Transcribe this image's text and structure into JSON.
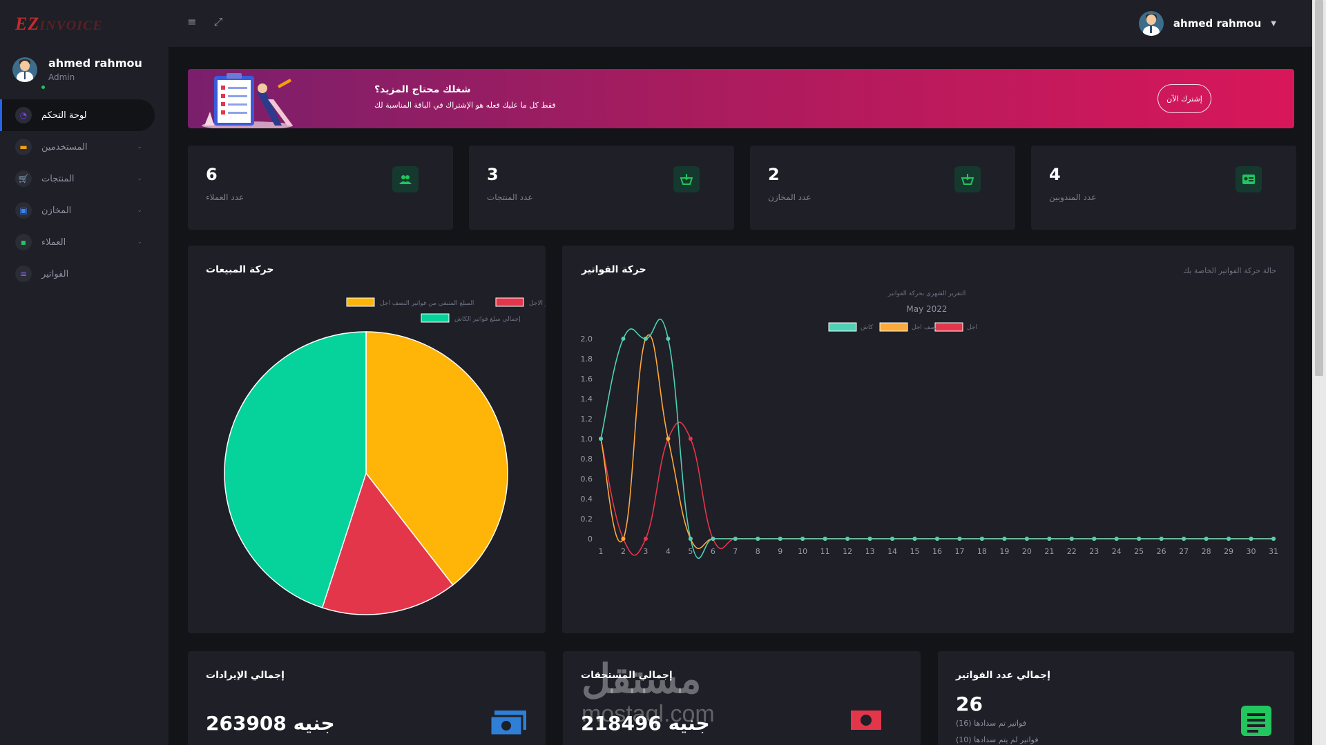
{
  "app": {
    "logo_prefix": "EZ",
    "logo_rest": "INVOICE"
  },
  "topbar": {
    "menu_icon": "menu-icon",
    "expand_icon": "expand-icon",
    "user_name": "ahmed rahmou"
  },
  "sidebar": {
    "user_name": "ahmed rahmou",
    "user_role": "Admin",
    "items": [
      {
        "label": "لوحة التحكم",
        "icon": "dashboard-icon",
        "color": "#7c3aed",
        "active": true,
        "has_children": false
      },
      {
        "label": "المستخدمين",
        "icon": "id-card-icon",
        "color": "#f59e0b",
        "active": false,
        "has_children": true
      },
      {
        "label": "المنتجات",
        "icon": "cart-icon",
        "color": "#ef4444",
        "active": false,
        "has_children": true
      },
      {
        "label": "المخازن",
        "icon": "warehouse-icon",
        "color": "#3b82f6",
        "active": false,
        "has_children": true
      },
      {
        "label": "العملاء",
        "icon": "contact-icon",
        "color": "#22c55e",
        "active": false,
        "has_children": true
      },
      {
        "label": "الفواتير",
        "icon": "invoice-icon",
        "color": "#8b5cf6",
        "active": false,
        "has_children": false
      }
    ]
  },
  "banner": {
    "title": "شغلك محتاج المزيد؟",
    "subtitle": "فقط كل ما عليك فعله هو الإشتراك في الباقة المناسبة لك",
    "button": "إشترك الآن"
  },
  "stats": [
    {
      "value": "6",
      "label": "عدد العملاء",
      "icon": "users-icon"
    },
    {
      "value": "3",
      "label": "عدد المنتجات",
      "icon": "basket-icon"
    },
    {
      "value": "2",
      "label": "عدد المخازن",
      "icon": "basket-icon"
    },
    {
      "value": "4",
      "label": "عدد المندوبين",
      "icon": "id-card-icon"
    }
  ],
  "sales_panel": {
    "title": "حركة المبيعات"
  },
  "invoices_panel": {
    "title": "حركة الفواتير",
    "subtitle": "حالة حركة الفواتير الخاصة بك"
  },
  "chart_data": [
    {
      "type": "pie",
      "title": "حركة المبيعات",
      "legend": [
        {
          "name": "المبلغ المتبقي من فواتير الاجل",
          "color": "#e4364a"
        },
        {
          "name": "المبلغ المتبقي من فواتير النصف اجل",
          "color": "#ffb508"
        },
        {
          "name": "إجمالي مبلغ فواتير الكاش",
          "color": "#06d39c"
        }
      ],
      "slices": [
        {
          "name": "المبلغ المتبقي من فواتير النصف اجل",
          "value": 39.5,
          "color": "#ffb508"
        },
        {
          "name": "المبلغ المتبقي من فواتير الاجل",
          "value": 15.5,
          "color": "#e4364a"
        },
        {
          "name": "إجمالي مبلغ فواتير الكاش",
          "value": 45.0,
          "color": "#06d39c"
        }
      ]
    },
    {
      "type": "line",
      "title": "التقرير الشهري بحركة الفواتير",
      "subtitle": "May 2022",
      "x": [
        1,
        2,
        3,
        4,
        5,
        6,
        7,
        8,
        9,
        10,
        11,
        12,
        13,
        14,
        15,
        16,
        17,
        18,
        19,
        20,
        21,
        22,
        23,
        24,
        25,
        26,
        27,
        28,
        29,
        30,
        31
      ],
      "ylim": [
        0,
        2
      ],
      "yticks": [
        0,
        0.2,
        0.4,
        0.6,
        0.8,
        1.0,
        1.2,
        1.4,
        1.6,
        1.8,
        2.0
      ],
      "ytick_labels": [
        "0",
        "0.2",
        "0.4",
        "0.6",
        "0.8",
        "1.0",
        "1.2",
        "1.4",
        "1.6",
        "1.8",
        "2.0"
      ],
      "series": [
        {
          "name": "اجل",
          "color": "#e4364a",
          "values": [
            1,
            0,
            0,
            1,
            1,
            0,
            0,
            0,
            0,
            0,
            0,
            0,
            0,
            0,
            0,
            0,
            0,
            0,
            0,
            0,
            0,
            0,
            0,
            0,
            0,
            0,
            0,
            0,
            0,
            0,
            0
          ]
        },
        {
          "name": "نصف اجل",
          "color": "#ffa93a",
          "values": [
            1,
            0,
            2,
            1,
            0,
            0,
            0,
            0,
            0,
            0,
            0,
            0,
            0,
            0,
            0,
            0,
            0,
            0,
            0,
            0,
            0,
            0,
            0,
            0,
            0,
            0,
            0,
            0,
            0,
            0,
            0
          ]
        },
        {
          "name": "كاش",
          "color": "#4fd1b5",
          "values": [
            1,
            2,
            2,
            2,
            0,
            0,
            0,
            0,
            0,
            0,
            0,
            0,
            0,
            0,
            0,
            0,
            0,
            0,
            0,
            0,
            0,
            0,
            0,
            0,
            0,
            0,
            0,
            0,
            0,
            0,
            0
          ]
        }
      ]
    }
  ],
  "bottom_cards": [
    {
      "title": "إجمالي الإيرادات",
      "value": "263908 جنيه",
      "icon": "money-icon",
      "color": "#3b82f6"
    },
    {
      "title": "إجمالي المستحقات",
      "value": "218496 جنيه",
      "icon": "cash-icon",
      "color": "#ef4444"
    },
    {
      "title": "إجمالي عدد الفواتير",
      "value": "26",
      "icon": "document-icon",
      "color": "#22c55e",
      "paid_count": "(16)",
      "paid_label": "فواتير تم سدادها",
      "unpaid_count": "(10)",
      "unpaid_label": "فواتير لم يتم سدادها"
    }
  ],
  "watermark": {
    "text_ar": "مستقل",
    "text_en": "mostaql.com"
  }
}
